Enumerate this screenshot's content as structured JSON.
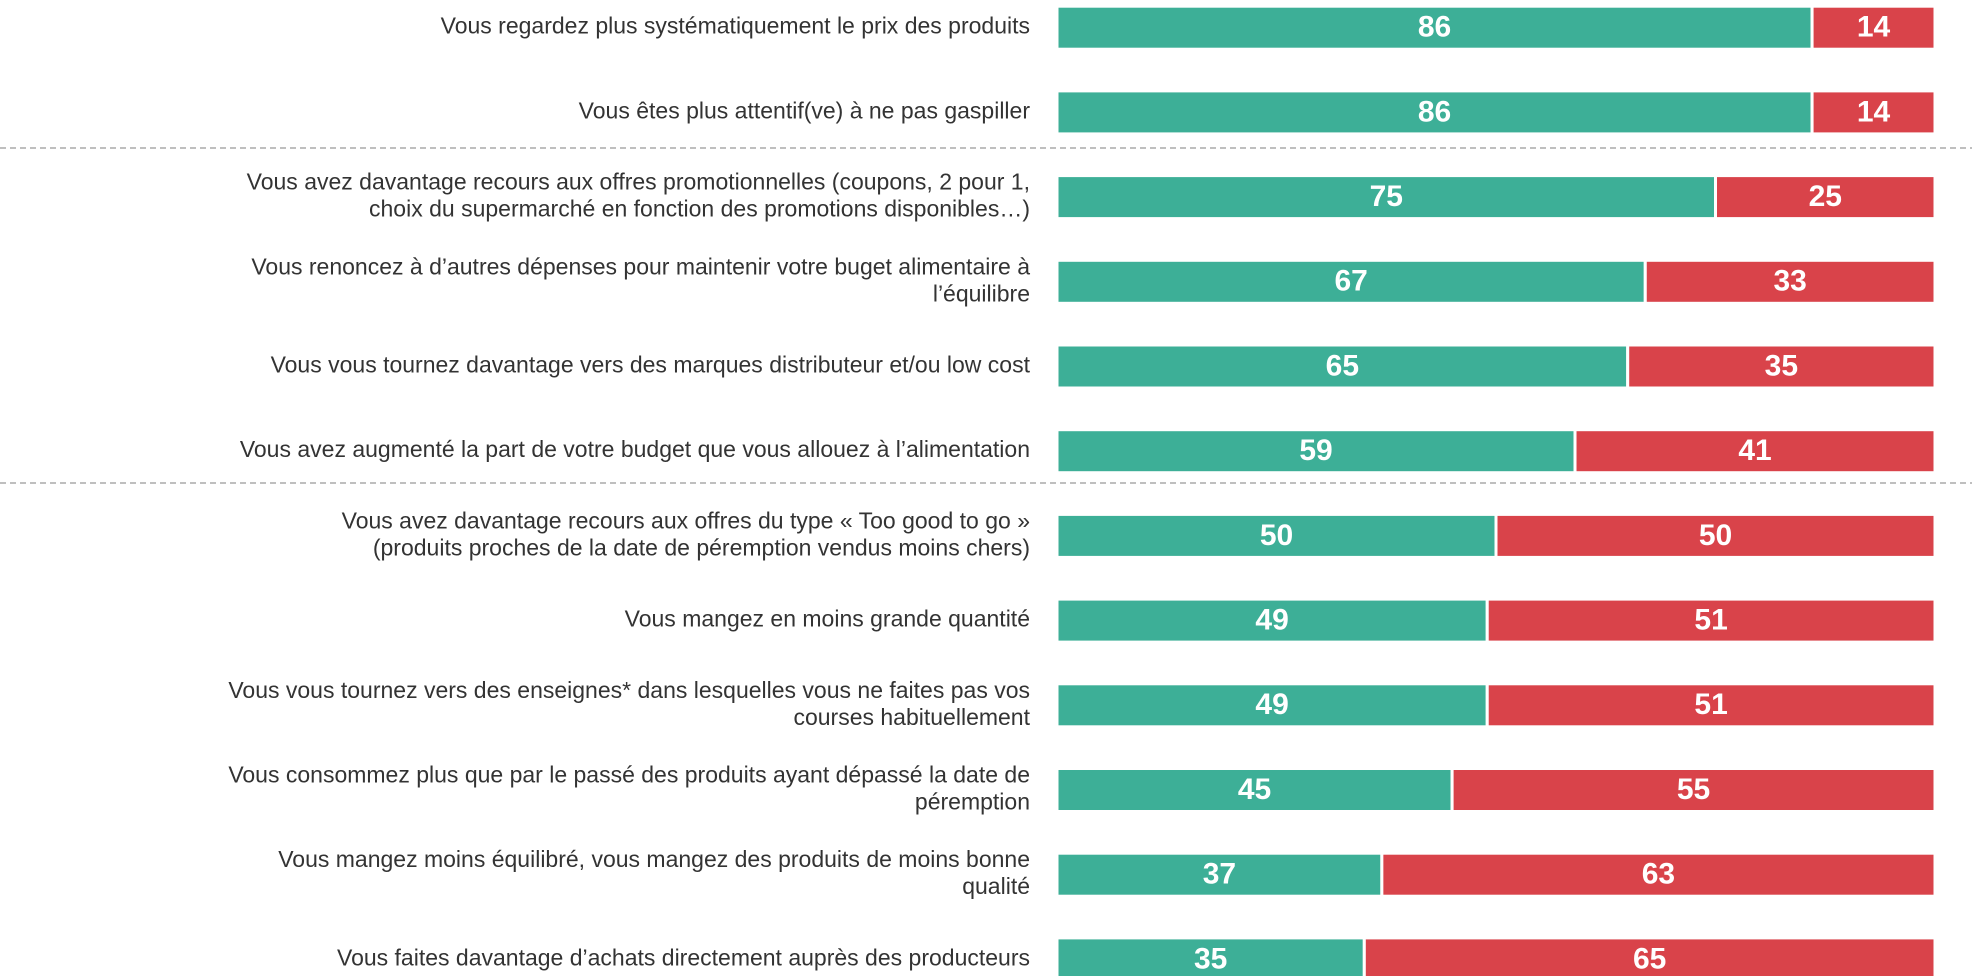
{
  "chart_data": {
    "type": "stacked-bar-horizontal",
    "categories": [
      [
        "Vous regardez plus systématiquement le prix des produits"
      ],
      [
        "Vous êtes plus attentif(ve) à ne pas gaspiller"
      ],
      [
        "Vous avez davantage recours aux offres promotionnelles (coupons, 2 pour 1,",
        "choix du supermarché en fonction des promotions disponibles…)"
      ],
      [
        "Vous renoncez à d’autres dépenses pour maintenir votre buget alimentaire à",
        "l’équilibre"
      ],
      [
        "Vous vous tournez davantage vers des marques distributeur et/ou low cost"
      ],
      [
        "Vous avez augmenté la part de votre budget que vous allouez à l’alimentation"
      ],
      [
        "Vous avez davantage recours aux offres du type « Too good to go »",
        "(produits proches de la date de péremption vendus moins chers)"
      ],
      [
        "Vous mangez en moins grande quantité"
      ],
      [
        "Vous vous tournez vers des enseignes* dans lesquelles vous ne faites pas vos",
        "courses habituellement"
      ],
      [
        "Vous consommez plus que par le passé des produits ayant dépassé la date de",
        "péremption"
      ],
      [
        "Vous mangez moins équilibré, vous mangez des produits de moins bonne",
        "qualité"
      ],
      [
        "Vous faites davantage d’achats directement auprès des producteurs"
      ]
    ],
    "series": [
      {
        "color": "#3daf97",
        "values": [
          86,
          86,
          75,
          67,
          65,
          59,
          50,
          49,
          49,
          45,
          37,
          35
        ]
      },
      {
        "color": "#d9434a",
        "values": [
          14,
          14,
          25,
          33,
          35,
          41,
          50,
          51,
          51,
          55,
          63,
          65
        ]
      }
    ]
  }
}
